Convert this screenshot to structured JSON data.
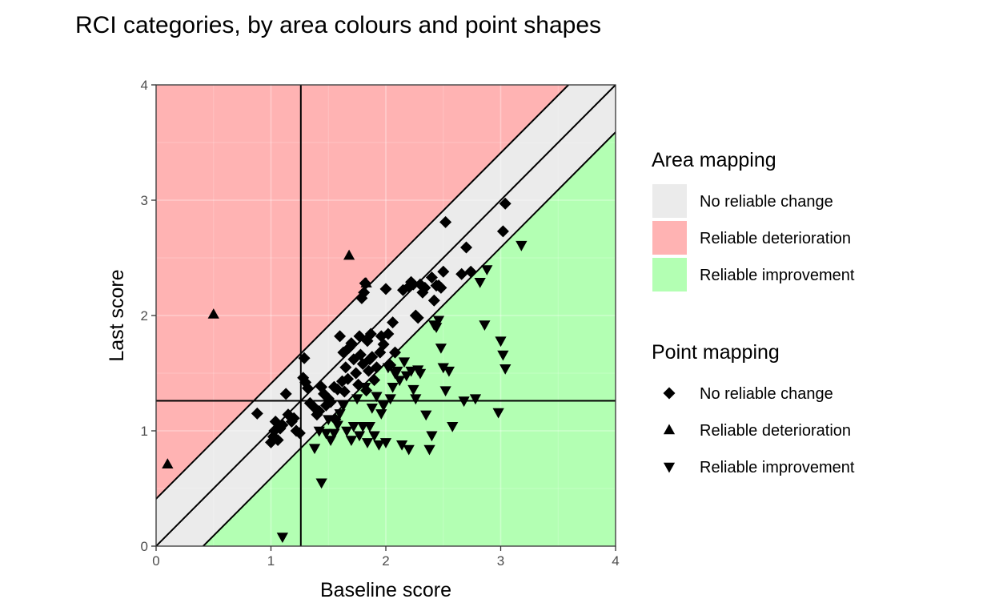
{
  "chart_data": {
    "type": "scatter",
    "title": "RCI categories, by area colours and point shapes",
    "xlabel": "Baseline score",
    "ylabel": "Last score",
    "xlim": [
      0,
      4
    ],
    "ylim": [
      0,
      4
    ],
    "x_ticks": [
      "0",
      "1",
      "2",
      "3",
      "4"
    ],
    "y_ticks": [
      "0",
      "1",
      "2",
      "3",
      "4"
    ],
    "grid": true,
    "reference_lines": {
      "vertical_x": 1.26,
      "horizontal_y": 1.26
    },
    "identity_line": true,
    "rci_band_half_width": 0.41,
    "colors": {
      "no_change": "#ebebeb",
      "deterioration": "#ffb3b3",
      "improvement": "#b3ffb3"
    },
    "legend_placement": "right",
    "area_legend": {
      "title": "Area mapping",
      "entries": [
        {
          "label": "No reliable change",
          "key": "no_change"
        },
        {
          "label": "Reliable deterioration",
          "key": "deterioration"
        },
        {
          "label": "Reliable improvement",
          "key": "improvement"
        }
      ]
    },
    "point_legend": {
      "title": "Point mapping",
      "entries": [
        {
          "label": "No reliable change",
          "shape": "diamond"
        },
        {
          "label": "Reliable deterioration",
          "shape": "triangle-up"
        },
        {
          "label": "Reliable improvement",
          "shape": "triangle-down"
        }
      ]
    },
    "series": [
      {
        "category": "No reliable change",
        "shape": "diamond",
        "points": [
          [
            0.88,
            1.15
          ],
          [
            1.0,
            0.9
          ],
          [
            1.02,
            0.95
          ],
          [
            1.03,
            1.0
          ],
          [
            1.04,
            1.08
          ],
          [
            1.06,
            0.92
          ],
          [
            1.08,
            1.02
          ],
          [
            1.1,
            1.05
          ],
          [
            1.13,
            1.32
          ],
          [
            1.15,
            1.14
          ],
          [
            1.18,
            1.08
          ],
          [
            1.2,
            1.11
          ],
          [
            1.22,
            1.0
          ],
          [
            1.25,
            0.98
          ],
          [
            1.28,
            1.46
          ],
          [
            1.29,
            1.63
          ],
          [
            1.3,
            1.42
          ],
          [
            1.32,
            1.37
          ],
          [
            1.34,
            1.24
          ],
          [
            1.38,
            1.2
          ],
          [
            1.4,
            1.14
          ],
          [
            1.42,
            1.17
          ],
          [
            1.44,
            1.38
          ],
          [
            1.46,
            1.32
          ],
          [
            1.48,
            1.22
          ],
          [
            1.5,
            1.28
          ],
          [
            1.52,
            1.25
          ],
          [
            1.55,
            1.38
          ],
          [
            1.56,
            1.1
          ],
          [
            1.58,
            1.36
          ],
          [
            1.6,
            1.82
          ],
          [
            1.62,
            1.43
          ],
          [
            1.63,
            1.68
          ],
          [
            1.64,
            1.34
          ],
          [
            1.65,
            1.55
          ],
          [
            1.67,
            1.45
          ],
          [
            1.68,
            1.72
          ],
          [
            1.7,
            1.76
          ],
          [
            1.72,
            1.62
          ],
          [
            1.74,
            1.5
          ],
          [
            1.76,
            1.4
          ],
          [
            1.77,
            1.82
          ],
          [
            1.78,
            1.66
          ],
          [
            1.79,
            2.15
          ],
          [
            1.8,
            1.58
          ],
          [
            1.81,
            2.2
          ],
          [
            1.82,
            2.28
          ],
          [
            1.83,
            1.35
          ],
          [
            1.84,
            1.78
          ],
          [
            1.85,
            1.52
          ],
          [
            1.86,
            1.62
          ],
          [
            1.87,
            1.84
          ],
          [
            1.88,
            1.64
          ],
          [
            1.9,
            1.44
          ],
          [
            1.92,
            1.55
          ],
          [
            1.95,
            1.68
          ],
          [
            1.96,
            1.82
          ],
          [
            1.98,
            1.75
          ],
          [
            2.0,
            2.23
          ],
          [
            2.02,
            1.84
          ],
          [
            2.04,
            1.57
          ],
          [
            2.06,
            1.94
          ],
          [
            2.08,
            1.68
          ],
          [
            2.15,
            2.22
          ],
          [
            2.2,
            2.25
          ],
          [
            2.22,
            2.29
          ],
          [
            2.24,
            2.27
          ],
          [
            2.26,
            2.0
          ],
          [
            2.28,
            1.98
          ],
          [
            2.3,
            2.27
          ],
          [
            2.32,
            2.2
          ],
          [
            2.34,
            2.24
          ],
          [
            2.4,
            2.33
          ],
          [
            2.42,
            2.13
          ],
          [
            2.44,
            2.26
          ],
          [
            2.46,
            2.26
          ],
          [
            2.48,
            2.24
          ],
          [
            2.5,
            2.38
          ],
          [
            2.52,
            2.81
          ],
          [
            2.66,
            2.36
          ],
          [
            2.7,
            2.59
          ],
          [
            2.74,
            2.38
          ],
          [
            3.02,
            2.73
          ],
          [
            3.04,
            2.97
          ]
        ]
      },
      {
        "category": "Reliable deterioration",
        "shape": "triangle-up",
        "points": [
          [
            0.1,
            0.71
          ],
          [
            0.5,
            2.01
          ],
          [
            1.68,
            2.52
          ],
          [
            1.83,
            2.28
          ]
        ]
      },
      {
        "category": "Reliable improvement",
        "shape": "triangle-down",
        "points": [
          [
            1.1,
            0.08
          ],
          [
            1.38,
            0.85
          ],
          [
            1.42,
            1.0
          ],
          [
            1.44,
            0.55
          ],
          [
            1.48,
            0.98
          ],
          [
            1.5,
            1.1
          ],
          [
            1.52,
            0.92
          ],
          [
            1.55,
            0.98
          ],
          [
            1.58,
            1.05
          ],
          [
            1.6,
            1.15
          ],
          [
            1.63,
            1.22
          ],
          [
            1.66,
            1.0
          ],
          [
            1.7,
            0.92
          ],
          [
            1.72,
            1.04
          ],
          [
            1.75,
            1.28
          ],
          [
            1.77,
            0.96
          ],
          [
            1.8,
            1.04
          ],
          [
            1.82,
            1.38
          ],
          [
            1.84,
            0.9
          ],
          [
            1.86,
            1.04
          ],
          [
            1.88,
            1.2
          ],
          [
            1.9,
            0.96
          ],
          [
            1.92,
            1.3
          ],
          [
            1.94,
            0.88
          ],
          [
            1.96,
            1.15
          ],
          [
            1.98,
            1.22
          ],
          [
            2.0,
            0.9
          ],
          [
            2.02,
            1.55
          ],
          [
            2.04,
            1.28
          ],
          [
            2.06,
            1.38
          ],
          [
            2.08,
            1.5
          ],
          [
            2.1,
            1.52
          ],
          [
            2.12,
            1.44
          ],
          [
            2.14,
            0.88
          ],
          [
            2.16,
            1.6
          ],
          [
            2.18,
            1.48
          ],
          [
            2.2,
            0.84
          ],
          [
            2.22,
            1.52
          ],
          [
            2.24,
            1.36
          ],
          [
            2.26,
            1.28
          ],
          [
            2.28,
            1.53
          ],
          [
            2.3,
            1.5
          ],
          [
            2.35,
            1.14
          ],
          [
            2.38,
            0.84
          ],
          [
            2.4,
            0.96
          ],
          [
            2.42,
            1.92
          ],
          [
            2.44,
            1.9
          ],
          [
            2.46,
            1.96
          ],
          [
            2.48,
            1.72
          ],
          [
            2.5,
            1.55
          ],
          [
            2.52,
            1.35
          ],
          [
            2.55,
            1.52
          ],
          [
            2.58,
            1.04
          ],
          [
            2.68,
            1.26
          ],
          [
            2.78,
            1.28
          ],
          [
            2.82,
            2.29
          ],
          [
            2.86,
            1.92
          ],
          [
            2.88,
            2.4
          ],
          [
            2.98,
            1.16
          ],
          [
            3.0,
            1.78
          ],
          [
            3.02,
            1.66
          ],
          [
            3.04,
            1.54
          ],
          [
            3.18,
            2.61
          ]
        ]
      }
    ]
  }
}
